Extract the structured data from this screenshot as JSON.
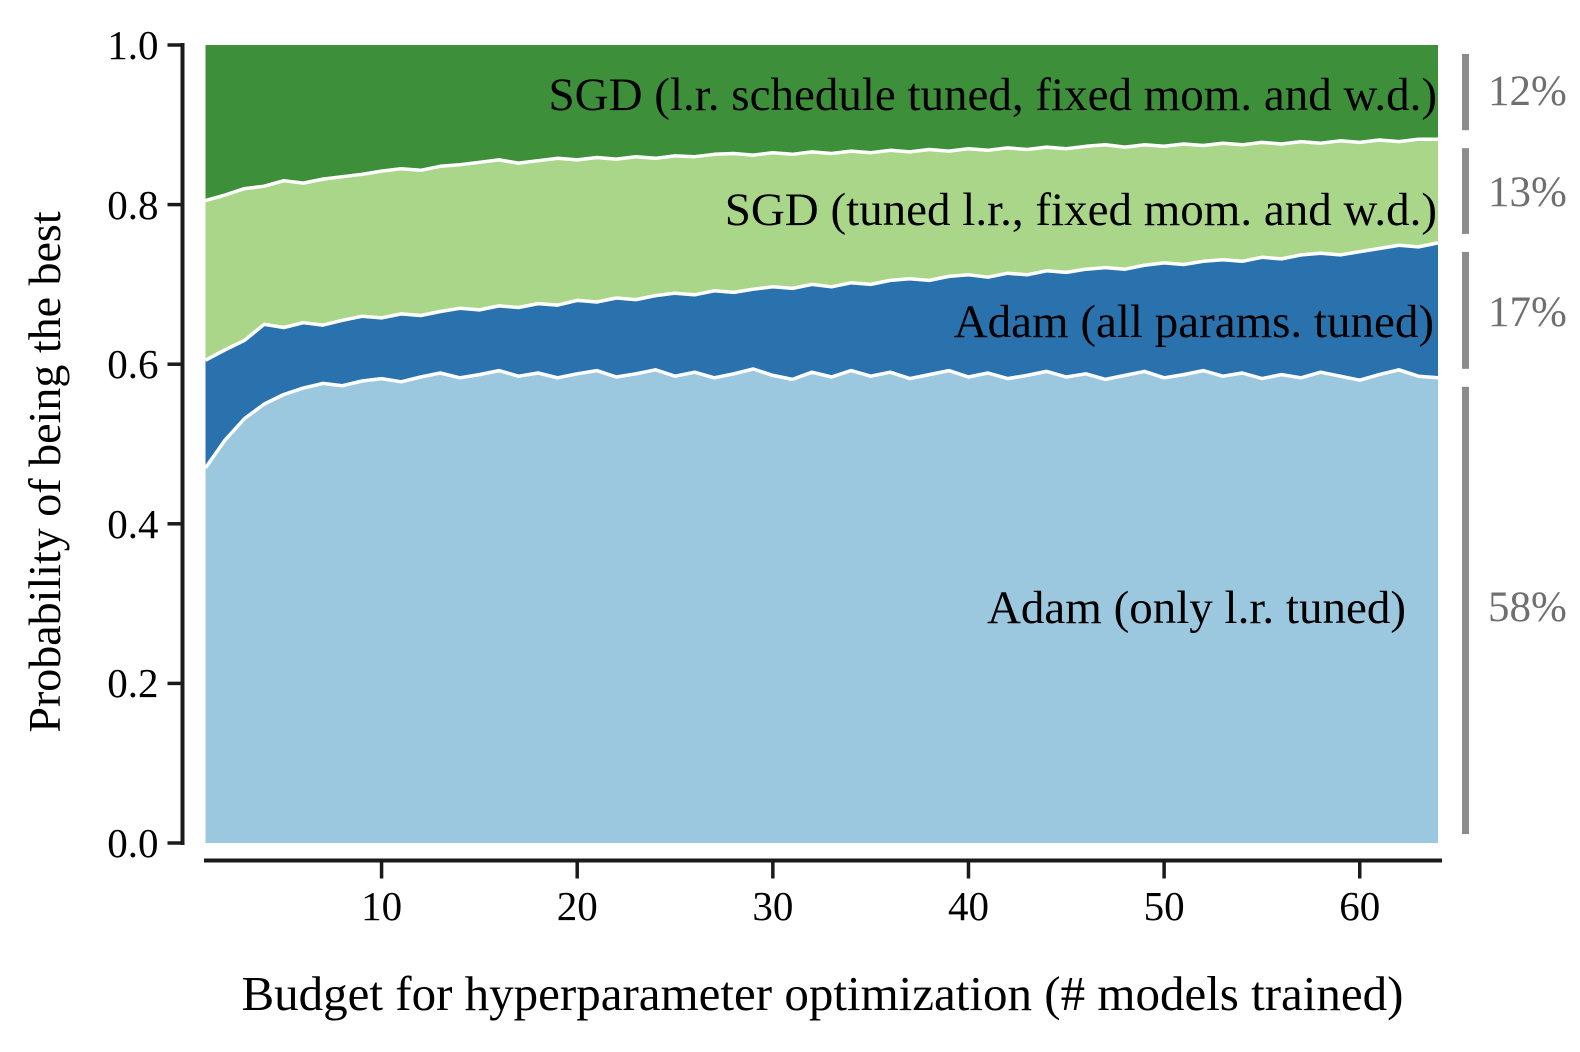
{
  "chart_data": {
    "type": "area",
    "stacked": true,
    "title": "",
    "xlabel": "Budget for hyperparameter optimization (# models trained)",
    "ylabel": "Probability of being the best",
    "xlim": [
      1,
      64
    ],
    "ylim": [
      0.0,
      1.0
    ],
    "x": {
      "from": 1,
      "to": 64,
      "step": 1
    },
    "x_ticks": [
      10,
      20,
      30,
      40,
      50,
      60
    ],
    "y_ticks": [
      "0.0",
      "0.2",
      "0.4",
      "0.6",
      "0.8",
      "1.0"
    ],
    "grid": false,
    "legend_position": "labels-inside-areas",
    "separator_color": "#ffffff",
    "axis_color": "#1a1a1a",
    "bracket_color": "#8c8c8c",
    "share_text_color": "#6f6f6f",
    "series": [
      {
        "name": "Adam (only l.r. tuned)",
        "color": "#9bc8df",
        "share": "58%",
        "cum_top": [
          0.47,
          0.505,
          0.532,
          0.55,
          0.562,
          0.57,
          0.576,
          0.573,
          0.579,
          0.582,
          0.578,
          0.584,
          0.589,
          0.583,
          0.587,
          0.592,
          0.585,
          0.589,
          0.583,
          0.588,
          0.592,
          0.584,
          0.588,
          0.593,
          0.585,
          0.59,
          0.583,
          0.588,
          0.594,
          0.586,
          0.581,
          0.59,
          0.584,
          0.592,
          0.585,
          0.59,
          0.582,
          0.587,
          0.592,
          0.584,
          0.589,
          0.582,
          0.586,
          0.591,
          0.584,
          0.588,
          0.581,
          0.586,
          0.591,
          0.583,
          0.587,
          0.592,
          0.585,
          0.589,
          0.582,
          0.587,
          0.583,
          0.59,
          0.585,
          0.58,
          0.587,
          0.593,
          0.585,
          0.583
        ]
      },
      {
        "name": "Adam (all params. tuned)",
        "color": "#2a72ae",
        "share": "17%",
        "cum_top": [
          0.605,
          0.618,
          0.63,
          0.65,
          0.646,
          0.652,
          0.649,
          0.655,
          0.66,
          0.658,
          0.663,
          0.661,
          0.666,
          0.67,
          0.668,
          0.673,
          0.671,
          0.676,
          0.674,
          0.68,
          0.678,
          0.683,
          0.681,
          0.686,
          0.689,
          0.687,
          0.692,
          0.69,
          0.694,
          0.697,
          0.695,
          0.7,
          0.697,
          0.702,
          0.7,
          0.705,
          0.707,
          0.705,
          0.71,
          0.712,
          0.709,
          0.714,
          0.712,
          0.717,
          0.715,
          0.719,
          0.721,
          0.719,
          0.724,
          0.727,
          0.725,
          0.729,
          0.731,
          0.729,
          0.734,
          0.732,
          0.737,
          0.739,
          0.737,
          0.741,
          0.745,
          0.749,
          0.747,
          0.752
        ]
      },
      {
        "name": "SGD (tuned l.r., fixed mom. and w.d.)",
        "color": "#aad689",
        "share": "13%",
        "cum_top": [
          0.805,
          0.812,
          0.82,
          0.823,
          0.83,
          0.827,
          0.832,
          0.835,
          0.838,
          0.842,
          0.845,
          0.843,
          0.848,
          0.85,
          0.853,
          0.856,
          0.852,
          0.855,
          0.858,
          0.856,
          0.859,
          0.857,
          0.86,
          0.858,
          0.861,
          0.86,
          0.863,
          0.864,
          0.862,
          0.865,
          0.863,
          0.866,
          0.864,
          0.867,
          0.865,
          0.868,
          0.866,
          0.869,
          0.867,
          0.87,
          0.868,
          0.871,
          0.869,
          0.872,
          0.87,
          0.873,
          0.875,
          0.872,
          0.875,
          0.873,
          0.876,
          0.874,
          0.877,
          0.875,
          0.878,
          0.876,
          0.879,
          0.877,
          0.88,
          0.878,
          0.881,
          0.879,
          0.882,
          0.882
        ]
      },
      {
        "name": "SGD (l.r. schedule tuned, fixed mom. and w.d.)",
        "color": "#3d8f3a",
        "share": "12%",
        "cum_top": null
      }
    ]
  }
}
